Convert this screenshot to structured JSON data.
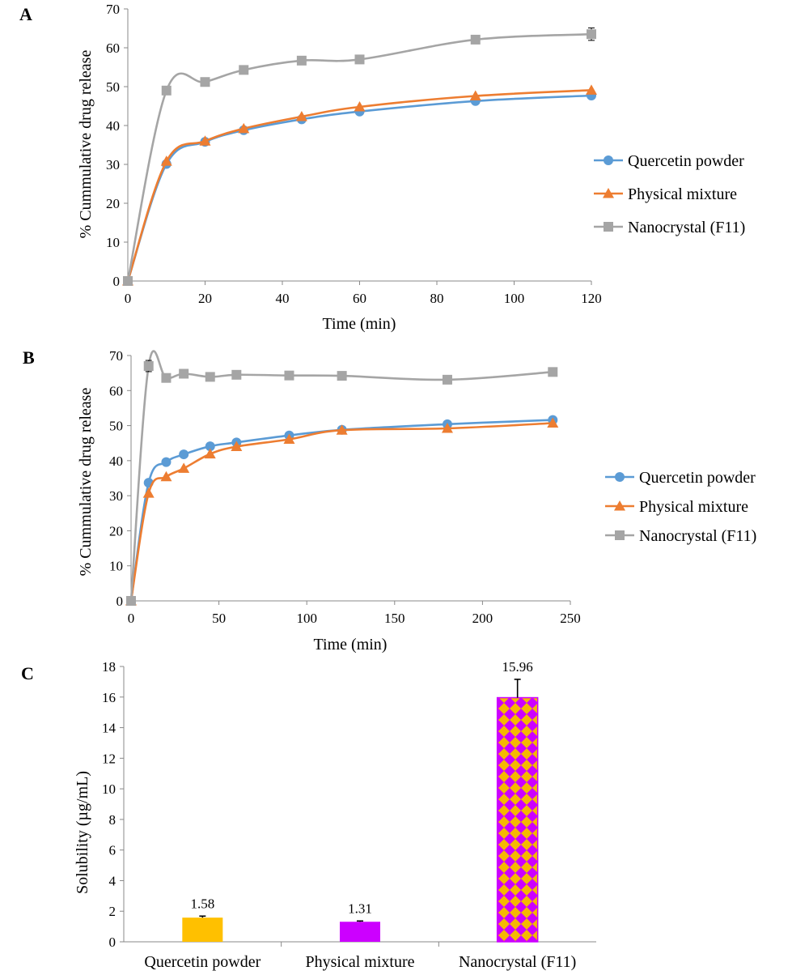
{
  "chart_data": [
    {
      "panel": "A",
      "type": "line",
      "xlabel": "Time (min)",
      "ylabel": "% Cummulative drug release",
      "xlim": [
        0,
        120
      ],
      "ylim": [
        0,
        70
      ],
      "xticks": [
        0,
        20,
        40,
        60,
        80,
        100,
        120
      ],
      "yticks": [
        0,
        10,
        20,
        30,
        40,
        50,
        60,
        70
      ],
      "legend_position": "right",
      "series": [
        {
          "name": "Quercetin powder",
          "marker": "circle",
          "color": "#5B9BD5",
          "x": [
            0,
            10,
            20,
            30,
            45,
            60,
            90,
            120
          ],
          "y": [
            0,
            30.1,
            35.8,
            38.8,
            41.6,
            43.6,
            46.3,
            47.7
          ]
        },
        {
          "name": "Physical mixture",
          "marker": "triangle",
          "color": "#ED7D31",
          "x": [
            0,
            10,
            20,
            30,
            45,
            60,
            90,
            120
          ],
          "y": [
            0,
            30.8,
            36.0,
            39.2,
            42.3,
            44.8,
            47.6,
            49.1
          ]
        },
        {
          "name": "Nanocrystal (F11)",
          "marker": "square",
          "color": "#A5A5A5",
          "x": [
            0,
            10,
            20,
            30,
            45,
            60,
            90,
            120
          ],
          "y": [
            0,
            49.0,
            51.2,
            54.3,
            56.7,
            57.0,
            62.1,
            63.5
          ],
          "err": [
            0,
            0.6,
            0.5,
            0.5,
            0.6,
            0.5,
            0.6,
            1.6
          ]
        }
      ]
    },
    {
      "panel": "B",
      "type": "line",
      "xlabel": "Time (min)",
      "ylabel": "% Cummulative  drug release",
      "xlim": [
        0,
        250
      ],
      "ylim": [
        0,
        70
      ],
      "xticks": [
        0,
        50,
        100,
        150,
        200,
        250
      ],
      "yticks": [
        0,
        10,
        20,
        30,
        40,
        50,
        60,
        70
      ],
      "legend_position": "right",
      "series": [
        {
          "name": "Quercetin powder",
          "marker": "circle",
          "color": "#5B9BD5",
          "x": [
            0,
            10,
            20,
            30,
            45,
            60,
            90,
            120,
            180,
            240
          ],
          "y": [
            0,
            33.7,
            39.6,
            41.8,
            44.1,
            45.2,
            47.2,
            48.8,
            50.4,
            51.6
          ]
        },
        {
          "name": "Physical mixture",
          "marker": "triangle",
          "color": "#ED7D31",
          "x": [
            0,
            10,
            20,
            30,
            45,
            60,
            90,
            120,
            180,
            240
          ],
          "y": [
            0,
            30.7,
            35.4,
            37.8,
            41.9,
            44.0,
            46.1,
            48.7,
            49.2,
            50.7
          ]
        },
        {
          "name": "Nanocrystal (F11)",
          "marker": "square",
          "color": "#A5A5A5",
          "x": [
            0,
            10,
            20,
            30,
            45,
            60,
            90,
            120,
            180,
            240
          ],
          "y": [
            0,
            67.0,
            63.6,
            64.8,
            63.9,
            64.5,
            64.3,
            64.2,
            63.1,
            65.3
          ],
          "err": [
            0,
            1.6,
            0.4,
            0.4,
            0.4,
            0.4,
            0.4,
            0.4,
            0.4,
            0.4
          ]
        }
      ]
    },
    {
      "panel": "C",
      "type": "bar",
      "xlabel": "",
      "ylabel": "Solubility (µg/mL)",
      "ylim": [
        0,
        18
      ],
      "yticks": [
        0,
        2,
        4,
        6,
        8,
        10,
        12,
        14,
        16,
        18
      ],
      "categories": [
        "Quercetin powder",
        "Physical mixture",
        "Nanocrystal (F11)"
      ],
      "values": [
        1.58,
        1.31,
        15.96
      ],
      "value_labels": [
        "1.58",
        "1.31",
        "15.96"
      ],
      "errors": [
        0.1,
        0.05,
        1.2
      ],
      "colors": [
        "#FFC000",
        "#CC00FF",
        "#CC00FF"
      ],
      "patterns": [
        "solid",
        "solid",
        "checker-orange"
      ]
    }
  ]
}
